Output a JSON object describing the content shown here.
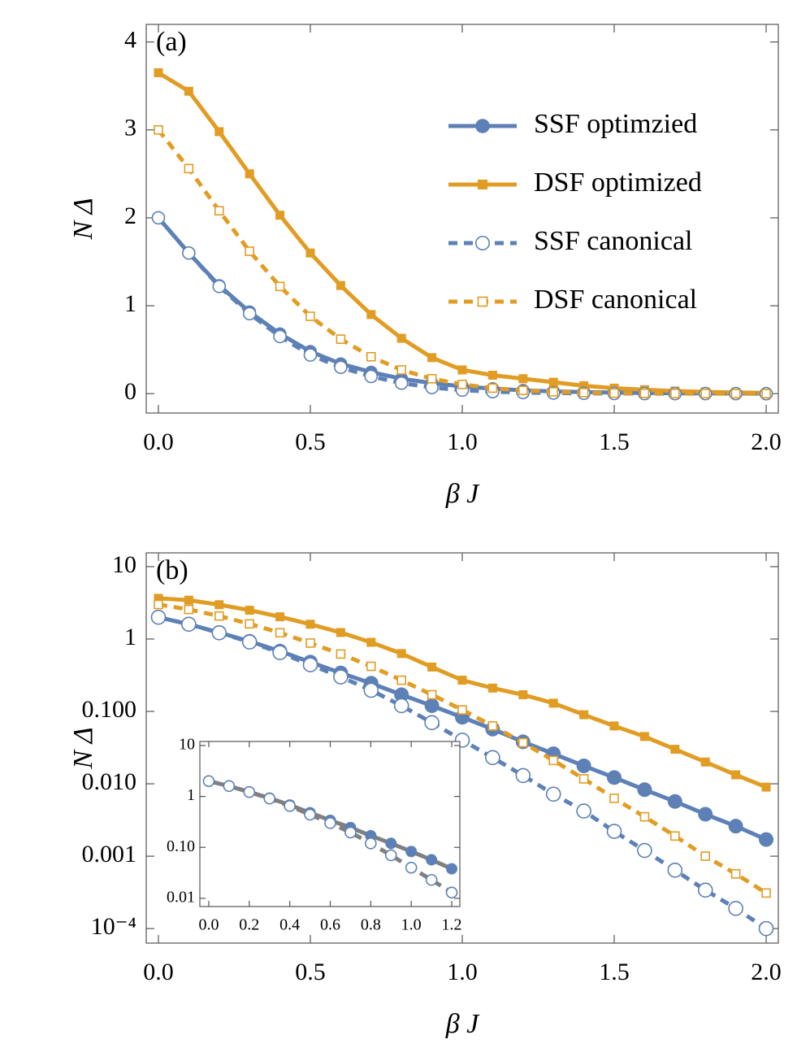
{
  "chart_data": [
    {
      "type": "line",
      "annotation": "(a)",
      "xlabel": "β J",
      "ylabel": "N Δ",
      "xlim": [
        -0.04,
        2.04
      ],
      "ylim": [
        -0.22,
        4.2
      ],
      "xticks": [
        {
          "value": 0,
          "label": "0.0"
        },
        0.5,
        {
          "value": 1,
          "label": "1.0"
        },
        1.5,
        {
          "value": 2,
          "label": "2.0"
        }
      ],
      "yticks": [
        0,
        1,
        2,
        3,
        4
      ],
      "legend": "upper right",
      "x": [
        0,
        0.1,
        0.2,
        0.3,
        0.4,
        0.5,
        0.6,
        0.7,
        0.8,
        0.9,
        1,
        1.1,
        1.2,
        1.3,
        1.4,
        1.5,
        1.6,
        1.7,
        1.8,
        1.9,
        2
      ],
      "series": [
        {
          "name": "SSF optimzied",
          "color": "#5d81b6",
          "marker": "circle",
          "filled": true,
          "dashed": false,
          "values": [
            2.0,
            1.6,
            1.23,
            0.93,
            0.68,
            0.48,
            0.34,
            0.245,
            0.17,
            0.12,
            0.083,
            0.057,
            0.038,
            0.026,
            0.0177,
            0.0122,
            0.0083,
            0.0057,
            0.0038,
            0.0026,
            0.0017
          ]
        },
        {
          "name": "DSF optimized",
          "color": "#e19c24",
          "marker": "square",
          "filled": true,
          "dashed": false,
          "values": [
            3.65,
            3.44,
            2.98,
            2.5,
            2.03,
            1.6,
            1.23,
            0.9,
            0.63,
            0.41,
            0.27,
            0.21,
            0.17,
            0.13,
            0.09,
            0.063,
            0.045,
            0.03,
            0.02,
            0.0133,
            0.009
          ]
        },
        {
          "name": "SSF canonical",
          "color": "#5d81b6",
          "marker": "circle",
          "filled": false,
          "dashed": true,
          "values": [
            2.0,
            1.6,
            1.22,
            0.91,
            0.65,
            0.44,
            0.3,
            0.196,
            0.12,
            0.07,
            0.04,
            0.023,
            0.013,
            0.0072,
            0.0042,
            0.0022,
            0.0012,
            0.00064,
            0.00034,
            0.00019,
            0.0001
          ]
        },
        {
          "name": "DSF canonical",
          "color": "#e19c24",
          "marker": "square",
          "filled": false,
          "dashed": true,
          "values": [
            3.0,
            2.56,
            2.08,
            1.62,
            1.22,
            0.88,
            0.62,
            0.42,
            0.27,
            0.17,
            0.105,
            0.063,
            0.037,
            0.021,
            0.0117,
            0.0063,
            0.0035,
            0.0019,
            0.001,
            0.00057,
            0.00031
          ]
        }
      ]
    },
    {
      "type": "line",
      "annotation": "(b)",
      "xlabel": "β J",
      "ylabel": "N Δ",
      "log_y": true,
      "xlim": [
        -0.04,
        2.04
      ],
      "ylim": [
        6.3e-05,
        15.5
      ],
      "xticks": [
        {
          "value": 0,
          "label": "0.0"
        },
        0.5,
        {
          "value": 1,
          "label": "1.0"
        },
        1.5,
        {
          "value": 2,
          "label": "2.0"
        }
      ],
      "yticks": [
        10,
        1,
        {
          "value": 0.1,
          "label": "0.100"
        },
        {
          "value": 0.01,
          "label": "0.010"
        },
        0.001,
        {
          "value": 0.0001,
          "label": "10⁻⁴"
        }
      ],
      "x": [
        0,
        0.1,
        0.2,
        0.3,
        0.4,
        0.5,
        0.6,
        0.7,
        0.8,
        0.9,
        1,
        1.1,
        1.2,
        1.3,
        1.4,
        1.5,
        1.6,
        1.7,
        1.8,
        1.9,
        2
      ],
      "series": [
        {
          "color": "#5d81b6",
          "marker": "circle",
          "filled": true,
          "dashed": false,
          "values": [
            2.0,
            1.6,
            1.23,
            0.93,
            0.68,
            0.48,
            0.34,
            0.245,
            0.17,
            0.12,
            0.083,
            0.057,
            0.038,
            0.026,
            0.0177,
            0.0122,
            0.0083,
            0.0057,
            0.0038,
            0.0026,
            0.0017
          ]
        },
        {
          "color": "#e19c24",
          "marker": "square",
          "filled": true,
          "dashed": false,
          "values": [
            3.65,
            3.44,
            2.98,
            2.5,
            2.03,
            1.6,
            1.23,
            0.9,
            0.63,
            0.41,
            0.27,
            0.21,
            0.17,
            0.13,
            0.09,
            0.063,
            0.045,
            0.03,
            0.02,
            0.0133,
            0.009
          ]
        },
        {
          "color": "#5d81b6",
          "marker": "circle",
          "filled": false,
          "dashed": true,
          "values": [
            2.0,
            1.6,
            1.22,
            0.91,
            0.65,
            0.44,
            0.3,
            0.196,
            0.12,
            0.07,
            0.04,
            0.023,
            0.013,
            0.0072,
            0.0042,
            0.0022,
            0.0012,
            0.00064,
            0.00034,
            0.00019,
            0.0001
          ]
        },
        {
          "color": "#e19c24",
          "marker": "square",
          "filled": false,
          "dashed": true,
          "values": [
            3.0,
            2.56,
            2.08,
            1.62,
            1.22,
            0.88,
            0.62,
            0.42,
            0.27,
            0.17,
            0.105,
            0.063,
            0.037,
            0.021,
            0.0117,
            0.0063,
            0.0035,
            0.0019,
            0.001,
            0.00057,
            0.00031
          ]
        }
      ]
    },
    {
      "type": "line",
      "log_y": true,
      "line_color": "#808080",
      "xlim": [
        -0.044,
        1.24
      ],
      "ylim": [
        0.0069,
        12
      ],
      "xticks": [
        {
          "value": 0,
          "label": "0.0"
        },
        0.2,
        0.4,
        0.6,
        0.8,
        {
          "value": 1,
          "label": "1.0"
        },
        1.2
      ],
      "yticks": [
        10,
        1,
        {
          "value": 0.1,
          "label": "0.10"
        },
        0.01
      ],
      "x": [
        0,
        0.1,
        0.2,
        0.3,
        0.4,
        0.5,
        0.6,
        0.7,
        0.8,
        0.9,
        1,
        1.1,
        1.2
      ],
      "series": [
        {
          "color": "#5d81b6",
          "marker": "circle",
          "filled": true,
          "dashed": false,
          "values": [
            2.0,
            1.6,
            1.23,
            0.93,
            0.68,
            0.48,
            0.34,
            0.245,
            0.17,
            0.12,
            0.083,
            0.057,
            0.038
          ]
        },
        {
          "color": "#5d81b6",
          "marker": "circle",
          "filled": false,
          "dashed": true,
          "values": [
            2.0,
            1.6,
            1.22,
            0.91,
            0.65,
            0.44,
            0.3,
            0.196,
            0.12,
            0.07,
            0.04,
            0.023,
            0.013
          ]
        }
      ]
    }
  ]
}
